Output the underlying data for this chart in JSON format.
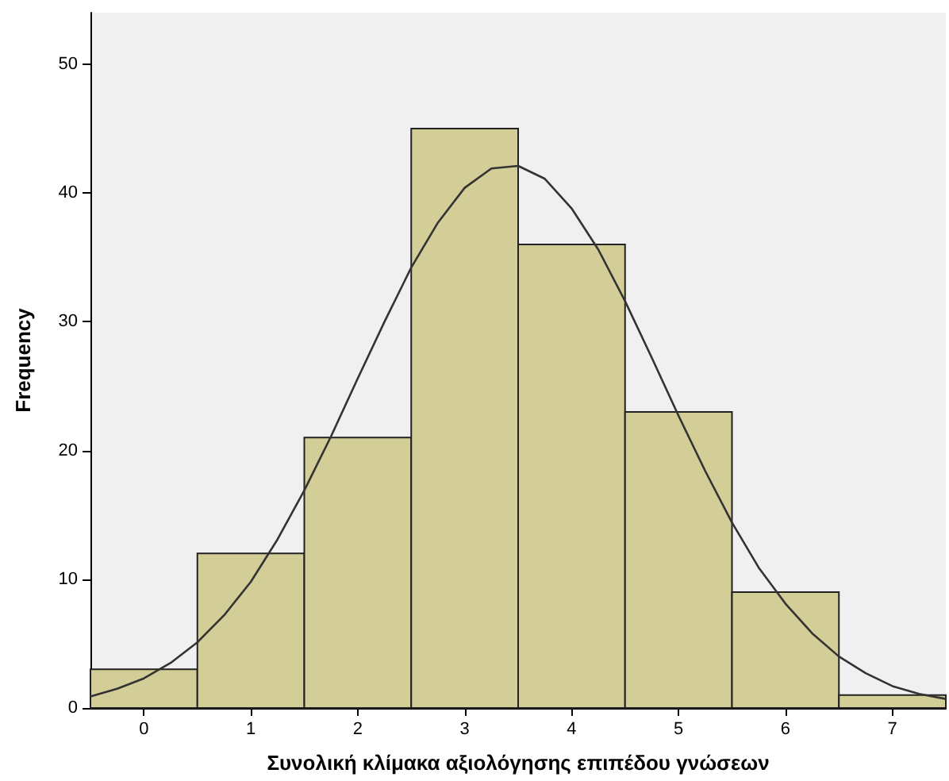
{
  "chart_data": {
    "type": "histogram",
    "xlabel": "Συνολική κλίμακα αξιολόγησης επιπέδου γνώσεων",
    "ylabel": "Frequency",
    "bins": [
      -0.5,
      0.5,
      1.5,
      2.5,
      3.5,
      4.5,
      5.5,
      6.5,
      7.5
    ],
    "values": [
      3,
      12,
      21,
      45,
      36,
      23,
      9,
      1
    ],
    "color": "#d3ce97",
    "series": [
      {
        "type": "line",
        "color": "#333333",
        "x": [
          -0.5,
          -0.25,
          0,
          0.25,
          0.5,
          0.75,
          1,
          1.25,
          1.5,
          1.75,
          2,
          2.25,
          2.5,
          2.75,
          3,
          3.25,
          3.5,
          3.75,
          4,
          4.25,
          4.5,
          4.75,
          5,
          5.25,
          5.5,
          5.75,
          6,
          6.25,
          6.5,
          6.75,
          7,
          7.25,
          7.5
        ],
        "values": [
          0.9,
          1.5,
          2.3,
          3.5,
          5.1,
          7.2,
          9.8,
          13.1,
          16.9,
          21.1,
          25.6,
          30.0,
          34.2,
          37.7,
          40.4,
          41.9,
          42.1,
          41.1,
          38.8,
          35.6,
          31.6,
          27.2,
          22.7,
          18.4,
          14.4,
          10.9,
          8.1,
          5.8,
          4.0,
          2.7,
          1.7,
          1.1,
          0.7
        ]
      }
    ],
    "xlim": [
      -0.5,
      7.5
    ],
    "xticks": [
      0,
      1,
      2,
      3,
      4,
      5,
      6,
      7
    ],
    "ylim": [
      0,
      54
    ],
    "yticks": [
      0,
      10,
      20,
      30,
      40,
      50
    ],
    "grid": false,
    "marker": "none"
  }
}
